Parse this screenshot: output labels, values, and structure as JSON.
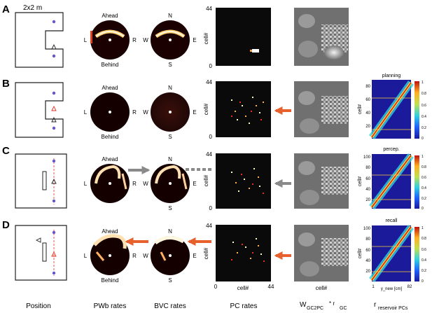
{
  "panel_letters": [
    "A",
    "B",
    "C",
    "D"
  ],
  "env_label": "2x2 m",
  "egocentric_labels": {
    "top": "Ahead",
    "bottom": "Behind",
    "left": "L",
    "right": "R"
  },
  "allocentric_labels": {
    "top": "N",
    "bottom": "S",
    "left": "W",
    "right": "E"
  },
  "pc_axis": {
    "max": "44",
    "min": "0",
    "ylabel": "cell#",
    "xlabel": "cell#"
  },
  "weight_xlabel": "cell#",
  "heatmaps": [
    {
      "title": "planning",
      "yticks": [
        "20",
        "40",
        "60",
        "80"
      ],
      "cticks": [
        "1",
        "0.8",
        "0.6",
        "0.4",
        "0.2",
        "0"
      ]
    },
    {
      "title": "percep.",
      "yticks": [
        "20",
        "40",
        "60",
        "80",
        "100"
      ],
      "cticks": [
        "1",
        "0.8",
        "0.6",
        "0.4",
        "0.2",
        "0"
      ]
    },
    {
      "title": "recall",
      "yticks": [
        "20",
        "40",
        "60",
        "80",
        "100"
      ],
      "cticks": [
        "1",
        "0.8",
        "0.6",
        "0.4",
        "0.2",
        "0"
      ]
    }
  ],
  "heatmap_ylabel": "cell#",
  "heatmap_xticks": [
    "1",
    "82"
  ],
  "heatmap_xlabel": "y_new [cm]",
  "bottom_labels": {
    "position": "Position",
    "pwb": "PWb  rates",
    "bvc": "BVC  rates",
    "pc": "PC rates",
    "weights_main": "W",
    "weights_sub": "GC2PC",
    "weights_star": "* r",
    "weights_sub2": "GC",
    "reservoir_main": "r",
    "reservoir_sub": "reservoir PCs"
  },
  "colors": {
    "arrow_orange": "#e8602c",
    "arrow_gray": "#8a8a8a",
    "env_dot": "#6655cc",
    "red_marker": "#e03020"
  }
}
